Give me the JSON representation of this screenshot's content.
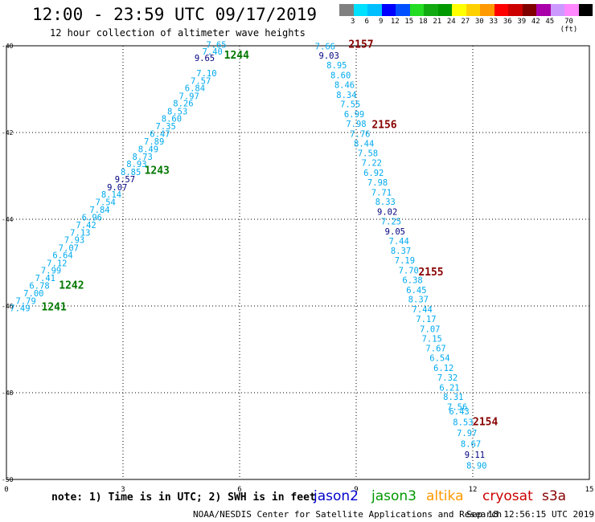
{
  "header": {
    "title": "12:00 - 23:59 UTC 09/17/2019",
    "subtitle": "12 hour collection of altimeter wave heights"
  },
  "colorbar": {
    "colors": [
      "#808080",
      "#00e0ff",
      "#00bfff",
      "#0000ff",
      "#0050ff",
      "#22dd22",
      "#11aa11",
      "#009900",
      "#ffff00",
      "#ffd000",
      "#ff9900",
      "#ff0000",
      "#cc0000",
      "#800000",
      "#aa00aa",
      "#cc99ff",
      "#ff88ff",
      "#000000"
    ],
    "labels": [
      "3",
      "6",
      "9",
      "12",
      "15",
      "18",
      "21",
      "24",
      "27",
      "30",
      "33",
      "36",
      "39",
      "42",
      "45",
      "70 (ft)"
    ]
  },
  "map": {
    "x_ticks": [
      "0",
      "3",
      "6",
      "9",
      "12",
      "15"
    ],
    "y_ticks": [
      "-40",
      "-42",
      "-44",
      "-46",
      "-48",
      "-50"
    ],
    "tracks": [
      {
        "id": "1241",
        "color": "#007700",
        "label_lon": 0.9,
        "label_lat": -46.1
      },
      {
        "id": "1242",
        "color": "#007700",
        "label_lon": 1.35,
        "label_lat": -45.6
      },
      {
        "id": "1243",
        "color": "#007700",
        "label_lon": 3.55,
        "label_lat": -42.95
      },
      {
        "id": "1244",
        "color": "#007700",
        "label_lon": 5.6,
        "label_lat": -40.3
      },
      {
        "id": "2157",
        "color": "#880000",
        "label_lon": 8.8,
        "label_lat": -40.05
      },
      {
        "id": "2156",
        "color": "#880000",
        "label_lon": 9.4,
        "label_lat": -41.9
      },
      {
        "id": "2155",
        "color": "#880000",
        "label_lon": 10.6,
        "label_lat": -45.3
      },
      {
        "id": "2154",
        "color": "#880000",
        "label_lon": 12.0,
        "label_lat": -48.75
      }
    ],
    "values_left": [
      {
        "v": "7.49",
        "lon": 0.35,
        "lat": -46.12,
        "c": "#00aaee"
      },
      {
        "v": "7.79",
        "lon": 0.5,
        "lat": -45.95,
        "c": "#00aaee"
      },
      {
        "v": "7.00",
        "lon": 0.7,
        "lat": -45.78,
        "c": "#00aaee"
      },
      {
        "v": "6.78",
        "lon": 0.85,
        "lat": -45.6,
        "c": "#00aaee"
      },
      {
        "v": "7.41",
        "lon": 1.0,
        "lat": -45.43,
        "c": "#00aaee"
      },
      {
        "v": "7.99",
        "lon": 1.15,
        "lat": -45.25,
        "c": "#00aaee"
      },
      {
        "v": "7.12",
        "lon": 1.3,
        "lat": -45.08,
        "c": "#00aaee"
      },
      {
        "v": "6.64",
        "lon": 1.45,
        "lat": -44.9,
        "c": "#00aaee"
      },
      {
        "v": "7.07",
        "lon": 1.6,
        "lat": -44.73,
        "c": "#00aaee"
      },
      {
        "v": "7.93",
        "lon": 1.75,
        "lat": -44.55,
        "c": "#00aaee"
      },
      {
        "v": "7.13",
        "lon": 1.9,
        "lat": -44.38,
        "c": "#00aaee"
      },
      {
        "v": "7.42",
        "lon": 2.05,
        "lat": -44.2,
        "c": "#00aaee"
      },
      {
        "v": "6.96",
        "lon": 2.2,
        "lat": -44.03,
        "c": "#00aaee"
      },
      {
        "v": "7.84",
        "lon": 2.4,
        "lat": -43.85,
        "c": "#00aaee"
      },
      {
        "v": "7.54",
        "lon": 2.55,
        "lat": -43.68,
        "c": "#00aaee"
      },
      {
        "v": "8.14",
        "lon": 2.7,
        "lat": -43.5,
        "c": "#00aaee"
      },
      {
        "v": "9.07",
        "lon": 2.85,
        "lat": -43.33,
        "c": "#000080"
      },
      {
        "v": "9.57",
        "lon": 3.05,
        "lat": -43.15,
        "c": "#000080"
      },
      {
        "v": "8.85",
        "lon": 3.2,
        "lat": -42.98,
        "c": "#00aaee"
      },
      {
        "v": "8.93",
        "lon": 3.35,
        "lat": -42.8,
        "c": "#00aaee"
      },
      {
        "v": "8.73",
        "lon": 3.5,
        "lat": -42.63,
        "c": "#00aaee"
      },
      {
        "v": "8.49",
        "lon": 3.65,
        "lat": -42.45,
        "c": "#00aaee"
      },
      {
        "v": "7.89",
        "lon": 3.8,
        "lat": -42.28,
        "c": "#00aaee"
      },
      {
        "v": "6.47",
        "lon": 3.95,
        "lat": -42.1,
        "c": "#00aaee"
      },
      {
        "v": "7.35",
        "lon": 4.1,
        "lat": -41.93,
        "c": "#00aaee"
      },
      {
        "v": "8.60",
        "lon": 4.25,
        "lat": -41.75,
        "c": "#00aaee"
      },
      {
        "v": "8.53",
        "lon": 4.4,
        "lat": -41.58,
        "c": "#00aaee"
      },
      {
        "v": "8.26",
        "lon": 4.55,
        "lat": -41.4,
        "c": "#00aaee"
      },
      {
        "v": "7.97",
        "lon": 4.7,
        "lat": -41.23,
        "c": "#00aaee"
      },
      {
        "v": "6.84",
        "lon": 4.85,
        "lat": -41.05,
        "c": "#00aaee"
      },
      {
        "v": "7.57",
        "lon": 5.0,
        "lat": -40.88,
        "c": "#00aaee"
      },
      {
        "v": "7.10",
        "lon": 5.15,
        "lat": -40.7,
        "c": "#00aaee"
      },
      {
        "v": "9.65",
        "lon": 5.1,
        "lat": -40.35,
        "c": "#000080"
      },
      {
        "v": "7.40",
        "lon": 5.3,
        "lat": -40.2,
        "c": "#00aaee"
      },
      {
        "v": "7.65",
        "lon": 5.4,
        "lat": -40.05,
        "c": "#00aaee"
      }
    ],
    "values_right": [
      {
        "v": "7.66",
        "lon": 8.2,
        "lat": -40.08,
        "c": "#00aaee"
      },
      {
        "v": "9.03",
        "lon": 8.3,
        "lat": -40.3,
        "c": "#000080"
      },
      {
        "v": "8.95",
        "lon": 8.5,
        "lat": -40.52,
        "c": "#00aaee"
      },
      {
        "v": "8.60",
        "lon": 8.6,
        "lat": -40.75,
        "c": "#00aaee"
      },
      {
        "v": "8.46",
        "lon": 8.7,
        "lat": -40.97,
        "c": "#00aaee"
      },
      {
        "v": "8.34",
        "lon": 8.75,
        "lat": -41.2,
        "c": "#00aaee"
      },
      {
        "v": "7.55",
        "lon": 8.85,
        "lat": -41.42,
        "c": "#00aaee"
      },
      {
        "v": "6.99",
        "lon": 8.95,
        "lat": -41.65,
        "c": "#00aaee"
      },
      {
        "v": "7.98",
        "lon": 9.0,
        "lat": -41.87,
        "c": "#00aaee"
      },
      {
        "v": "7.76",
        "lon": 9.1,
        "lat": -42.1,
        "c": "#00aaee"
      },
      {
        "v": "8.44",
        "lon": 9.2,
        "lat": -42.32,
        "c": "#00aaee"
      },
      {
        "v": "7.58",
        "lon": 9.3,
        "lat": -42.55,
        "c": "#00aaee"
      },
      {
        "v": "7.22",
        "lon": 9.4,
        "lat": -42.77,
        "c": "#00aaee"
      },
      {
        "v": "6.92",
        "lon": 9.45,
        "lat": -43.0,
        "c": "#00aaee"
      },
      {
        "v": "7.98",
        "lon": 9.55,
        "lat": -43.22,
        "c": "#00aaee"
      },
      {
        "v": "7.71",
        "lon": 9.65,
        "lat": -43.45,
        "c": "#00aaee"
      },
      {
        "v": "8.33",
        "lon": 9.75,
        "lat": -43.67,
        "c": "#00aaee"
      },
      {
        "v": "9.02",
        "lon": 9.8,
        "lat": -43.9,
        "c": "#000080"
      },
      {
        "v": "7.25",
        "lon": 9.9,
        "lat": -44.12,
        "c": "#00aaee"
      },
      {
        "v": "9.05",
        "lon": 10.0,
        "lat": -44.35,
        "c": "#000080"
      },
      {
        "v": "7.44",
        "lon": 10.1,
        "lat": -44.57,
        "c": "#00aaee"
      },
      {
        "v": "8.37",
        "lon": 10.15,
        "lat": -44.8,
        "c": "#00aaee"
      },
      {
        "v": "7.19",
        "lon": 10.25,
        "lat": -45.02,
        "c": "#00aaee"
      },
      {
        "v": "7.70",
        "lon": 10.35,
        "lat": -45.25,
        "c": "#00aaee"
      },
      {
        "v": "6.38",
        "lon": 10.45,
        "lat": -45.47,
        "c": "#00aaee"
      },
      {
        "v": "6.45",
        "lon": 10.55,
        "lat": -45.7,
        "c": "#00aaee"
      },
      {
        "v": "8.37",
        "lon": 10.6,
        "lat": -45.92,
        "c": "#00aaee"
      },
      {
        "v": "7.44",
        "lon": 10.7,
        "lat": -46.15,
        "c": "#00aaee"
      },
      {
        "v": "7.17",
        "lon": 10.8,
        "lat": -46.37,
        "c": "#00aaee"
      },
      {
        "v": "7.07",
        "lon": 10.9,
        "lat": -46.6,
        "c": "#00aaee"
      },
      {
        "v": "7.15",
        "lon": 10.95,
        "lat": -46.82,
        "c": "#00aaee"
      },
      {
        "v": "7.67",
        "lon": 11.05,
        "lat": -47.05,
        "c": "#00aaee"
      },
      {
        "v": "6.54",
        "lon": 11.15,
        "lat": -47.27,
        "c": "#00aaee"
      },
      {
        "v": "6.12",
        "lon": 11.25,
        "lat": -47.5,
        "c": "#00aaee"
      },
      {
        "v": "7.32",
        "lon": 11.35,
        "lat": -47.72,
        "c": "#00aaee"
      },
      {
        "v": "6.21",
        "lon": 11.4,
        "lat": -47.95,
        "c": "#00aaee"
      },
      {
        "v": "8.31",
        "lon": 11.5,
        "lat": -48.17,
        "c": "#00aaee"
      },
      {
        "v": "7.56",
        "lon": 11.6,
        "lat": -48.4,
        "c": "#00aaee"
      },
      {
        "v": "6.43",
        "lon": 11.65,
        "lat": -48.5,
        "c": "#00aaee"
      },
      {
        "v": "8.53",
        "lon": 11.75,
        "lat": -48.75,
        "c": "#00aaee"
      },
      {
        "v": "7.97",
        "lon": 11.85,
        "lat": -49.0,
        "c": "#00aaee"
      },
      {
        "v": "8.67",
        "lon": 11.95,
        "lat": -49.25,
        "c": "#00aaee"
      },
      {
        "v": "9.11",
        "lon": 12.05,
        "lat": -49.5,
        "c": "#000080"
      },
      {
        "v": "8.90",
        "lon": 12.1,
        "lat": -49.75,
        "c": "#00aaee"
      }
    ]
  },
  "note": "note: 1) Time is in UTC; 2) SWH is in feet",
  "legend": [
    {
      "name": "jason2",
      "color": "#0000cc"
    },
    {
      "name": "jason3",
      "color": "#009900"
    },
    {
      "name": "altika",
      "color": "#ff9900"
    },
    {
      "name": "cryosat",
      "color": "#cc0000"
    },
    {
      "name": "s3a",
      "color": "#880000"
    }
  ],
  "footer": {
    "agency": "NOAA/NESDIS Center for Satellite Applications and Research",
    "timestamp": "Sep 18 12:56:15 UTC 2019"
  }
}
